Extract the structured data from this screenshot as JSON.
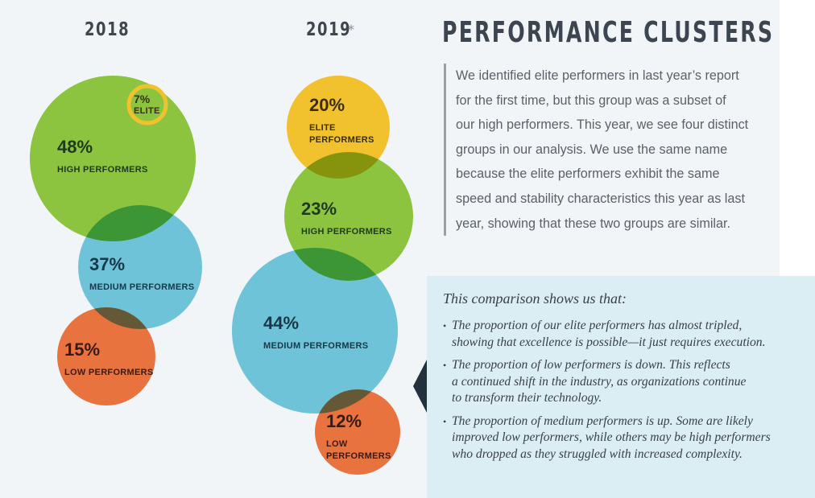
{
  "page": {
    "title": "PERFORMANCE CLUSTERS",
    "intro_lines": [
      "We identified elite performers in last year’s report",
      "for the first time, but this group was a subset of",
      "our high performers. This year, we see four distinct",
      "groups in our analysis. We use the same name",
      "because the elite performers exhibit the same",
      "speed and stability characteristics this year as last",
      "year, showing that these two groups are similar."
    ],
    "callout": {
      "heading": "This comparison shows us that:",
      "bullet_glyph": "•",
      "items": [
        {
          "lines": [
            "The proportion of our elite performers has almost tripled,",
            "showing that excellence is possible—it just requires execution."
          ]
        },
        {
          "lines": [
            "The proportion of low performers is down. This reflects",
            "a continued shift in the industry, as organizations continue",
            "to transform their technology."
          ]
        },
        {
          "lines": [
            "The proportion of medium performers is up. Some are likely",
            "improved low performers, while others may be high performers",
            "who dropped as they struggled with increased complexity."
          ]
        }
      ]
    }
  },
  "colors": {
    "elite": "#f2c12e",
    "high": "#8cc43f",
    "medium": "#6fc3d8",
    "low": "#e8733f",
    "elite_text": "#3b2e10",
    "high_text": "#1f3a1a",
    "medium_text": "#17384a",
    "low_text": "#3a1a12"
  },
  "chart_data": {
    "type": "bubble",
    "title": "PERFORMANCE CLUSTERS",
    "unit": "percent of respondents",
    "years": [
      {
        "label": "2018",
        "footnote_marker": "",
        "clusters": [
          {
            "key": "high",
            "value": 48,
            "value_label": "48%",
            "name_lines": [
              "HIGH PERFORMERS"
            ]
          },
          {
            "key": "elite",
            "value": 7,
            "value_label": "7%",
            "name_lines": [
              "ELITE"
            ],
            "style": "ring",
            "subset_of": "high"
          },
          {
            "key": "medium",
            "value": 37,
            "value_label": "37%",
            "name_lines": [
              "MEDIUM PERFORMERS"
            ]
          },
          {
            "key": "low",
            "value": 15,
            "value_label": "15%",
            "name_lines": [
              "LOW PERFORMERS"
            ]
          }
        ]
      },
      {
        "label": "2019",
        "footnote_marker": "*",
        "clusters": [
          {
            "key": "elite",
            "value": 20,
            "value_label": "20%",
            "name_lines": [
              "ELITE",
              "PERFORMERS"
            ]
          },
          {
            "key": "high",
            "value": 23,
            "value_label": "23%",
            "name_lines": [
              "HIGH PERFORMERS"
            ]
          },
          {
            "key": "medium",
            "value": 44,
            "value_label": "44%",
            "name_lines": [
              "MEDIUM PERFORMERS"
            ]
          },
          {
            "key": "low",
            "value": 12,
            "value_label": "12%",
            "name_lines": [
              "LOW",
              "PERFORMERS"
            ]
          }
        ]
      }
    ]
  }
}
